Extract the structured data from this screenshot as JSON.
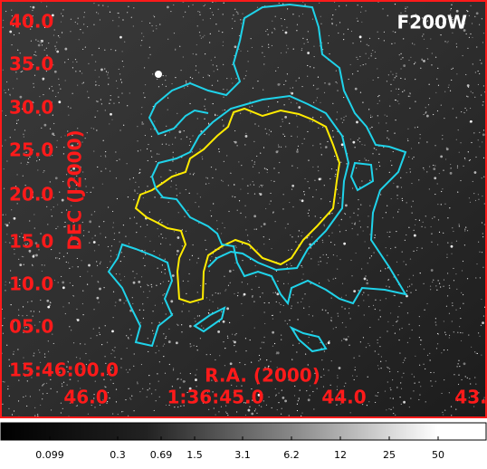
{
  "panel": {
    "label": "F200W",
    "y_axis": {
      "title": "DEC (J2000)",
      "ticks": [
        "40.0",
        "35.0",
        "30.0",
        "25.0",
        "20.0",
        "15.0",
        "10.0",
        "05.0",
        "15:46:00.0"
      ]
    },
    "x_axis": {
      "title": "R.A. (2000)",
      "ticks": [
        "46.0",
        "1:36:45.0",
        "44.0",
        "43."
      ]
    }
  },
  "colorbar": {
    "ticks": [
      "0.099",
      "0.3",
      "0.69",
      "1.5",
      "3.1",
      "6.2",
      "12",
      "25",
      "50"
    ]
  }
}
